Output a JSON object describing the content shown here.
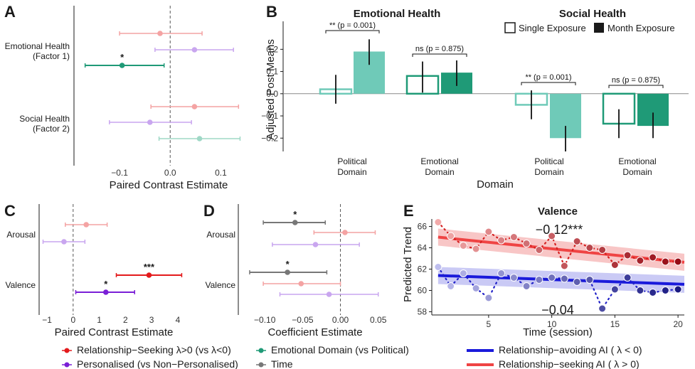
{
  "colors": {
    "red": "#e31a1c",
    "light_red": "#f4a3a3",
    "purple": "#7a1fd6",
    "light_purple": "#c9a6ef",
    "teal": "#1f9a77",
    "light_teal": "#9fd8c6",
    "grey": "#777777",
    "light_grey": "#bbbbbb",
    "bar_teal": "#6fcab8",
    "bar_dark": "#1f9a77",
    "blue": "#1a1adb",
    "ink": "#1a1a1a"
  },
  "legend": {
    "relationship": "Relationship−Seeking λ>0 (vs λ<0)",
    "personalised": "Personalised (vs Non−Personalised)",
    "emotional": "Emotional Domain (vs Political)",
    "time": "Time",
    "avoiding": "Relationship−avoiding AI ( λ < 0)",
    "seeking": "Relationship−seeking AI ( λ > 0)"
  },
  "chart_data": [
    {
      "panel": "A",
      "type": "scatter",
      "xlabel": "Paired Contrast Estimate",
      "xlim": [
        -0.19,
        0.15
      ],
      "xticks": [
        -0.1,
        0.0,
        0.1
      ],
      "xtick_labels": [
        "−0.1",
        "0.0",
        "0.1"
      ],
      "groups": [
        {
          "label": "Emotional Health",
          "sublabel": "(Factor 1)",
          "points": [
            {
              "series": "relationship",
              "est": -0.02,
              "lo": -0.1,
              "hi": 0.063,
              "sig": "",
              "strong": false
            },
            {
              "series": "personalised",
              "est": 0.048,
              "lo": -0.03,
              "hi": 0.125,
              "sig": "",
              "strong": false
            },
            {
              "series": "emotional",
              "est": -0.095,
              "lo": -0.168,
              "hi": -0.012,
              "sig": "*",
              "strong": true
            }
          ]
        },
        {
          "label": "Social Health",
          "sublabel": "(Factor 2)",
          "points": [
            {
              "series": "relationship",
              "est": 0.048,
              "lo": -0.038,
              "hi": 0.135,
              "sig": "",
              "strong": false
            },
            {
              "series": "personalised",
              "est": -0.04,
              "lo": -0.12,
              "hi": 0.042,
              "sig": "",
              "strong": false
            },
            {
              "series": "emotional",
              "est": 0.058,
              "lo": -0.022,
              "hi": 0.138,
              "sig": "",
              "strong": false
            }
          ]
        }
      ]
    },
    {
      "panel": "B",
      "type": "bar",
      "ylabel": "Adjusted Post Means",
      "xlabel": "Domain",
      "ylim": [
        -0.26,
        0.31
      ],
      "yticks": [
        -0.2,
        -0.1,
        0.0,
        0.1,
        0.2
      ],
      "ytick_labels": [
        "−0.2",
        "−0.1",
        "0.0",
        "0.1",
        "0.2"
      ],
      "legend": [
        "Single Exposure",
        "Month Exposure"
      ],
      "facets": [
        {
          "title": "Emotional Health",
          "groups": [
            {
              "domain": [
                "Political",
                "Domain"
              ],
              "single": 0.02,
              "month": 0.19,
              "single_ci": [
                -0.045,
                0.085
              ],
              "month_ci": [
                0.13,
                0.245
              ],
              "annotation": "**  (p = 0.001)",
              "fill": "teal"
            },
            {
              "domain": [
                "Emotional",
                "Domain"
              ],
              "single": 0.08,
              "month": 0.095,
              "single_ci": [
                0.005,
                0.145
              ],
              "month_ci": [
                0.035,
                0.15
              ],
              "annotation": "ns  (p = 0.875)",
              "fill": "dark"
            }
          ]
        },
        {
          "title": "Social Health",
          "groups": [
            {
              "domain": [
                "Political",
                "Domain"
              ],
              "single": -0.05,
              "month": -0.2,
              "single_ci": [
                -0.115,
                0.015
              ],
              "month_ci": [
                -0.26,
                -0.145
              ],
              "annotation": "**  (p = 0.001)",
              "fill": "teal"
            },
            {
              "domain": [
                "Emotional",
                "Domain"
              ],
              "single": -0.135,
              "month": -0.145,
              "single_ci": [
                -0.2,
                -0.07
              ],
              "month_ci": [
                -0.2,
                -0.085
              ],
              "annotation": "ns  (p = 0.875)",
              "fill": "dark"
            }
          ]
        }
      ]
    },
    {
      "panel": "C",
      "type": "scatter",
      "xlabel": "Paired Contrast Estimate",
      "xlim": [
        -1.3,
        4.6
      ],
      "xticks": [
        -1,
        0,
        1,
        2,
        3,
        4
      ],
      "xtick_labels": [
        "−1",
        "0",
        "1",
        "2",
        "3",
        "4"
      ],
      "groups": [
        {
          "label": "Arousal",
          "points": [
            {
              "series": "relationship",
              "est": 0.5,
              "lo": -0.3,
              "hi": 1.3,
              "sig": "",
              "strong": false
            },
            {
              "series": "personalised",
              "est": -0.35,
              "lo": -1.15,
              "hi": 0.45,
              "sig": "",
              "strong": false
            }
          ]
        },
        {
          "label": "Valence",
          "points": [
            {
              "series": "relationship",
              "est": 2.9,
              "lo": 1.65,
              "hi": 4.15,
              "sig": "***",
              "strong": true
            },
            {
              "series": "personalised",
              "est": 1.25,
              "lo": 0.1,
              "hi": 2.35,
              "sig": "*",
              "strong": true
            }
          ]
        }
      ]
    },
    {
      "panel": "D",
      "type": "scatter",
      "xlabel": "Coefficient Estimate",
      "xlim": [
        -0.135,
        0.07
      ],
      "xticks": [
        -0.1,
        -0.05,
        0.0,
        0.05
      ],
      "xtick_labels": [
        "−0.10",
        "−0.05",
        "0.00",
        "0.05"
      ],
      "groups": [
        {
          "label": "Arousal",
          "points": [
            {
              "series": "time",
              "est": -0.06,
              "lo": -0.102,
              "hi": -0.02,
              "sig": "*",
              "strong": true
            },
            {
              "series": "relationship",
              "est": 0.006,
              "lo": -0.035,
              "hi": 0.046,
              "sig": "",
              "strong": false
            },
            {
              "series": "personalised",
              "est": -0.033,
              "lo": -0.09,
              "hi": 0.025,
              "sig": "",
              "strong": false
            }
          ]
        },
        {
          "label": "Valence",
          "points": [
            {
              "series": "time",
              "est": -0.07,
              "lo": -0.12,
              "hi": -0.018,
              "sig": "*",
              "strong": true
            },
            {
              "series": "relationship",
              "est": -0.052,
              "lo": -0.102,
              "hi": 0.0,
              "sig": "",
              "strong": false
            },
            {
              "series": "personalised",
              "est": -0.015,
              "lo": -0.08,
              "hi": 0.05,
              "sig": "",
              "strong": false
            }
          ]
        }
      ]
    },
    {
      "panel": "E",
      "type": "line",
      "title": "Valence",
      "xlabel": "Time (session)",
      "ylabel": "Predicted Trend",
      "xlim": [
        0.5,
        20.5
      ],
      "ylim": [
        57.7,
        66.7
      ],
      "xticks": [
        5,
        10,
        15,
        20
      ],
      "yticks": [
        58,
        60,
        62,
        64,
        66
      ],
      "series": [
        {
          "name": "Relationship−seeking AI ( λ > 0)",
          "key": "seeking",
          "slope_label": "−0.12***",
          "trend": [
            [
              1,
              65.0
            ],
            [
              20,
              62.7
            ]
          ],
          "band": 0.8,
          "x": [
            1,
            2,
            3,
            4,
            5,
            6,
            7,
            8,
            9,
            10,
            11,
            12,
            13,
            14,
            15,
            16,
            17,
            18,
            19,
            20
          ],
          "values": [
            66.4,
            65.1,
            64.2,
            63.9,
            65.5,
            64.7,
            65.0,
            64.4,
            63.8,
            65.1,
            62.3,
            64.6,
            64.0,
            63.8,
            62.4,
            63.3,
            62.8,
            63.1,
            62.7,
            62.7
          ]
        },
        {
          "name": "Relationship−avoiding AI ( λ < 0)",
          "key": "avoiding",
          "slope_label": "−0.04",
          "trend": [
            [
              1,
              61.4
            ],
            [
              20,
              60.6
            ]
          ],
          "band": 0.8,
          "x": [
            1,
            2,
            3,
            4,
            5,
            6,
            7,
            8,
            9,
            10,
            11,
            12,
            13,
            14,
            15,
            16,
            17,
            18,
            19,
            20
          ],
          "values": [
            62.2,
            60.4,
            61.6,
            60.2,
            59.3,
            61.6,
            61.2,
            60.4,
            61.0,
            61.2,
            61.1,
            60.8,
            61.0,
            58.3,
            60.1,
            61.2,
            60.0,
            59.8,
            60.0,
            60.1
          ]
        }
      ]
    }
  ]
}
